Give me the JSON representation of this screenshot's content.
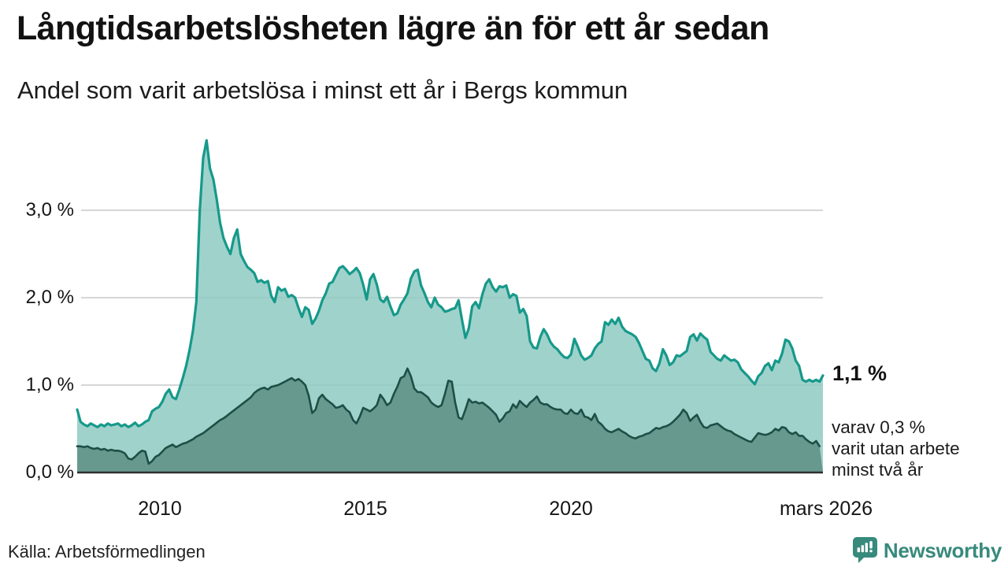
{
  "chart_data": {
    "type": "area",
    "title": "Långtidsarbetslösheten lägre än för ett år sedan",
    "subtitle": "Andel som varit arbetslösa i minst ett år i Bergs kommun",
    "unit": "%",
    "frequency": "monthly",
    "x_start": "2008-01",
    "x_end": "2026-03",
    "ylim": [
      0,
      3.9
    ],
    "yticks": [
      0,
      1,
      2,
      3
    ],
    "ytick_labels": [
      "0,0 %",
      "1,0 %",
      "2,0 %",
      "3,0 %"
    ],
    "xticks": [
      {
        "label": "2010",
        "month_index": 24
      },
      {
        "label": "2015",
        "month_index": 84
      },
      {
        "label": "2020",
        "month_index": 144
      },
      {
        "label": "mars 2026",
        "month_index": 218
      }
    ],
    "grid": true,
    "grid_color": "#d6d6d6",
    "axis_line_color": "#2e2e2e",
    "series": [
      {
        "name": "Andel som varit arbetslösa i minst ett år",
        "color": "#16998a",
        "fill": "#8fcac3",
        "fill_opacity": 0.85,
        "line_width": 3.2,
        "end_value": 1.1,
        "values": [
          0.72,
          0.58,
          0.55,
          0.53,
          0.56,
          0.54,
          0.52,
          0.55,
          0.53,
          0.56,
          0.54,
          0.55,
          0.56,
          0.53,
          0.55,
          0.52,
          0.54,
          0.57,
          0.53,
          0.55,
          0.58,
          0.6,
          0.7,
          0.73,
          0.75,
          0.81,
          0.9,
          0.95,
          0.86,
          0.84,
          0.95,
          1.08,
          1.22,
          1.4,
          1.62,
          1.95,
          3.0,
          3.6,
          3.8,
          3.48,
          3.35,
          3.12,
          2.85,
          2.68,
          2.58,
          2.5,
          2.68,
          2.78,
          2.5,
          2.42,
          2.35,
          2.32,
          2.28,
          2.18,
          2.2,
          2.17,
          2.19,
          2.02,
          1.95,
          2.12,
          2.08,
          2.1,
          2.01,
          2.03,
          2.0,
          1.88,
          1.78,
          1.89,
          1.86,
          1.7,
          1.76,
          1.85,
          1.97,
          2.05,
          2.16,
          2.18,
          2.26,
          2.34,
          2.36,
          2.32,
          2.27,
          2.3,
          2.34,
          2.28,
          2.15,
          1.98,
          2.21,
          2.27,
          2.15,
          1.98,
          1.95,
          2.01,
          1.9,
          1.8,
          1.82,
          1.92,
          1.98,
          2.05,
          2.22,
          2.3,
          2.32,
          2.14,
          2.05,
          1.95,
          1.89,
          2.0,
          1.92,
          1.89,
          1.84,
          1.85,
          1.87,
          1.88,
          1.97,
          1.75,
          1.54,
          1.65,
          1.9,
          1.95,
          1.88,
          2.04,
          2.16,
          2.21,
          2.12,
          2.07,
          2.13,
          2.12,
          2.14,
          2.0,
          2.04,
          2.02,
          1.83,
          1.87,
          1.79,
          1.5,
          1.43,
          1.42,
          1.55,
          1.64,
          1.58,
          1.49,
          1.44,
          1.41,
          1.36,
          1.32,
          1.31,
          1.35,
          1.53,
          1.44,
          1.34,
          1.29,
          1.31,
          1.34,
          1.42,
          1.47,
          1.5,
          1.72,
          1.69,
          1.75,
          1.7,
          1.77,
          1.67,
          1.62,
          1.6,
          1.58,
          1.55,
          1.48,
          1.39,
          1.3,
          1.28,
          1.19,
          1.16,
          1.25,
          1.41,
          1.34,
          1.23,
          1.26,
          1.34,
          1.33,
          1.36,
          1.39,
          1.55,
          1.58,
          1.51,
          1.59,
          1.55,
          1.52,
          1.38,
          1.34,
          1.3,
          1.28,
          1.34,
          1.31,
          1.28,
          1.29,
          1.26,
          1.18,
          1.14,
          1.1,
          1.05,
          1.01,
          1.1,
          1.14,
          1.22,
          1.25,
          1.17,
          1.28,
          1.26,
          1.36,
          1.52,
          1.5,
          1.42,
          1.28,
          1.22,
          1.06,
          1.04,
          1.06,
          1.04,
          1.06,
          1.04,
          1.11
        ]
      },
      {
        "name": "varav varit utan arbete minst två år",
        "color": "#1e4f46",
        "fill": "#67998f",
        "fill_opacity": 1,
        "line_width": 2.6,
        "end_value": 0.3,
        "values": [
          0.3,
          0.3,
          0.29,
          0.3,
          0.28,
          0.27,
          0.28,
          0.26,
          0.27,
          0.25,
          0.26,
          0.25,
          0.25,
          0.24,
          0.22,
          0.16,
          0.15,
          0.18,
          0.22,
          0.25,
          0.24,
          0.1,
          0.13,
          0.18,
          0.2,
          0.24,
          0.28,
          0.3,
          0.32,
          0.29,
          0.31,
          0.33,
          0.34,
          0.36,
          0.38,
          0.41,
          0.43,
          0.45,
          0.48,
          0.51,
          0.54,
          0.57,
          0.6,
          0.62,
          0.65,
          0.68,
          0.71,
          0.74,
          0.77,
          0.8,
          0.83,
          0.86,
          0.91,
          0.94,
          0.96,
          0.97,
          0.95,
          0.98,
          0.99,
          1.0,
          1.02,
          1.04,
          1.06,
          1.08,
          1.05,
          1.07,
          1.04,
          1.0,
          0.88,
          0.68,
          0.72,
          0.85,
          0.89,
          0.84,
          0.81,
          0.78,
          0.74,
          0.75,
          0.77,
          0.72,
          0.69,
          0.6,
          0.56,
          0.64,
          0.74,
          0.72,
          0.7,
          0.73,
          0.77,
          0.89,
          0.84,
          0.77,
          0.8,
          0.9,
          0.98,
          1.08,
          1.1,
          1.19,
          1.1,
          0.96,
          0.92,
          0.92,
          0.89,
          0.86,
          0.8,
          0.77,
          0.75,
          0.77,
          0.9,
          1.05,
          1.04,
          0.8,
          0.63,
          0.61,
          0.72,
          0.84,
          0.8,
          0.81,
          0.79,
          0.8,
          0.77,
          0.74,
          0.7,
          0.66,
          0.58,
          0.62,
          0.68,
          0.7,
          0.78,
          0.74,
          0.82,
          0.78,
          0.75,
          0.8,
          0.83,
          0.87,
          0.8,
          0.78,
          0.78,
          0.75,
          0.73,
          0.72,
          0.72,
          0.68,
          0.67,
          0.72,
          0.68,
          0.67,
          0.72,
          0.64,
          0.63,
          0.6,
          0.67,
          0.58,
          0.55,
          0.5,
          0.47,
          0.46,
          0.48,
          0.5,
          0.47,
          0.45,
          0.42,
          0.4,
          0.39,
          0.41,
          0.42,
          0.44,
          0.45,
          0.48,
          0.51,
          0.5,
          0.52,
          0.53,
          0.55,
          0.58,
          0.62,
          0.66,
          0.72,
          0.68,
          0.59,
          0.63,
          0.66,
          0.58,
          0.52,
          0.51,
          0.54,
          0.55,
          0.56,
          0.53,
          0.5,
          0.48,
          0.47,
          0.44,
          0.42,
          0.4,
          0.38,
          0.36,
          0.35,
          0.4,
          0.45,
          0.44,
          0.43,
          0.44,
          0.46,
          0.5,
          0.48,
          0.52,
          0.51,
          0.46,
          0.44,
          0.46,
          0.42,
          0.42,
          0.38,
          0.35,
          0.33,
          0.36,
          0.3
        ]
      }
    ]
  },
  "annotations": {
    "end_value": "1,1 %",
    "sub_line1": "varav 0,3 %",
    "sub_line2": "varit utan arbete",
    "sub_line3": "minst två år"
  },
  "footer": {
    "source": "Källa: Arbetsförmedlingen",
    "brand": "Newsworthy",
    "brand_color": "#378a7c"
  }
}
